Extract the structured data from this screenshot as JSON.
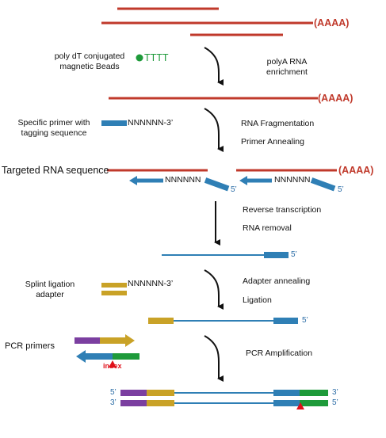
{
  "colors": {
    "rna": "#c0392b",
    "dna": "#2f7fb5",
    "primer": "#2f6fa8",
    "adapter": "#c9a227",
    "purple": "#7b3fa0",
    "green": "#1e9a3a",
    "index": "#e0101a",
    "arrow": "#111111"
  },
  "polyA": "(AAAA)",
  "tttt": "TTTT",
  "steps": {
    "s1": {
      "left": "poly dT conjugated\nmagnetic Beads",
      "right": "polyA RNA\nenrichment"
    },
    "s2": {
      "left": "Specific primer with\ntagging sequence",
      "seq": "NNNNNN-3’",
      "right1": "RNA Fragmentation",
      "right2": "Primer Annealing"
    },
    "s3": {
      "left": "Targeted RNA sequence",
      "seq": "NNNNNN",
      "prime": "5’",
      "right1": "Reverse transcription",
      "right2": "RNA removal"
    },
    "s4": {
      "prime": "5’"
    },
    "s5": {
      "left": "Splint ligation\nadapter",
      "seq": "NNNNNN-3’",
      "right1": "Adapter annealing",
      "right2": "Ligation"
    },
    "s6": {
      "prime": "5’"
    },
    "s7": {
      "left": "PCR primers",
      "index": "index",
      "right": "PCR Amplification"
    },
    "final": {
      "p5_top": "5’",
      "p3_top": "3’",
      "p3_bot": "3’",
      "p5_bot": "5’"
    }
  }
}
